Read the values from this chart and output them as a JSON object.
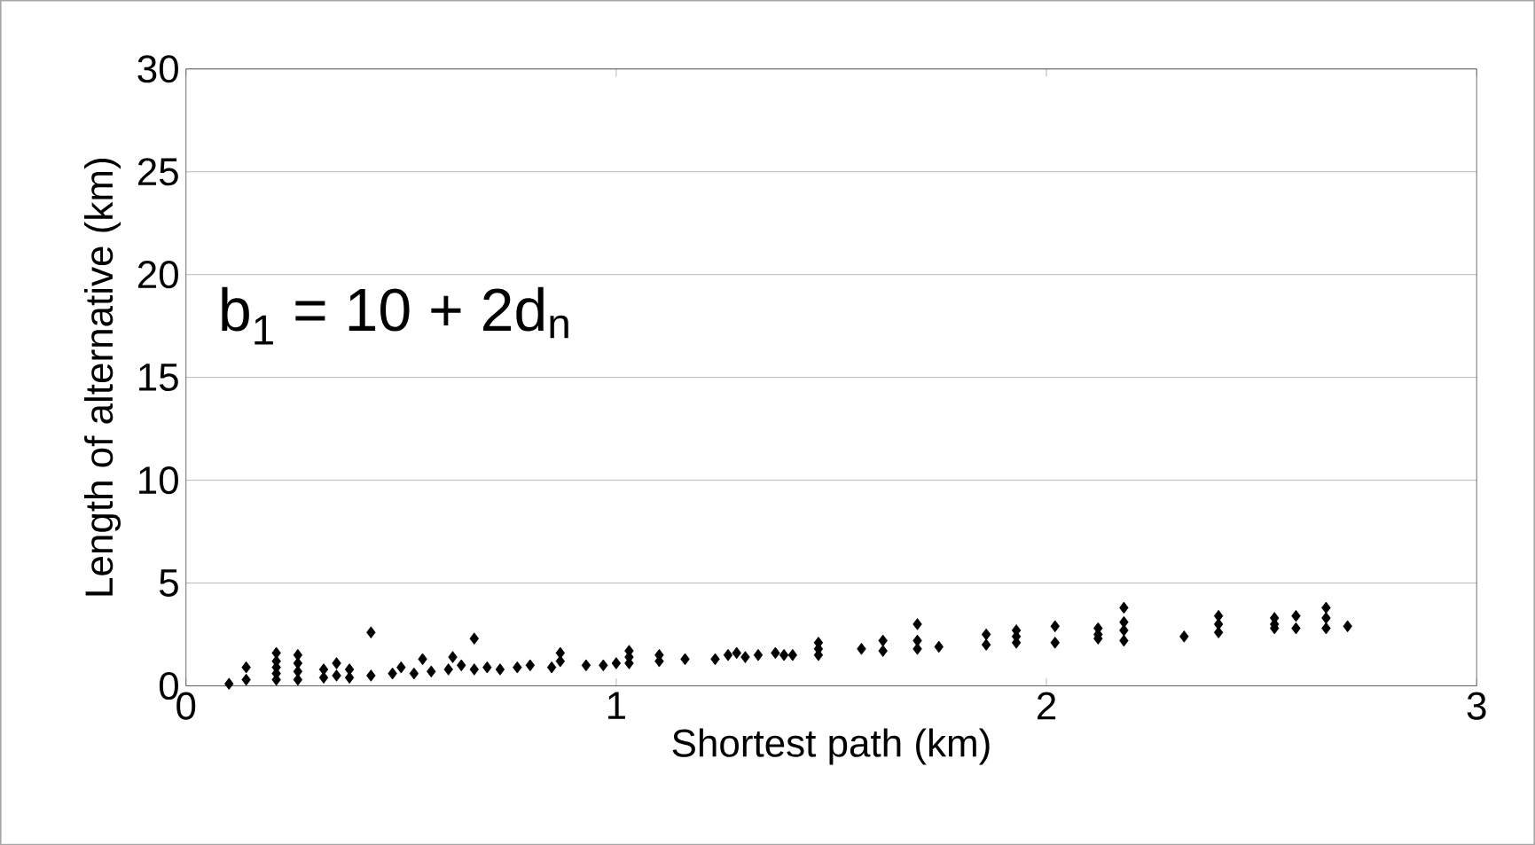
{
  "chart_data": {
    "type": "scatter",
    "xlabel": "Shortest path (km)",
    "ylabel": "Length of alternative (km)",
    "annotations": [
      "b$_{1}$ = 10 + 2d$_{n}$"
    ],
    "x": [
      0.1,
      0.14,
      0.14,
      0.21,
      0.21,
      0.21,
      0.21,
      0.21,
      0.26,
      0.26,
      0.26,
      0.26,
      0.32,
      0.32,
      0.35,
      0.35,
      0.38,
      0.38,
      0.43,
      0.43,
      0.48,
      0.5,
      0.53,
      0.55,
      0.57,
      0.61,
      0.62,
      0.64,
      0.67,
      0.67,
      0.7,
      0.73,
      0.77,
      0.8,
      0.85,
      0.87,
      0.87,
      0.93,
      0.97,
      1.0,
      1.03,
      1.03,
      1.03,
      1.1,
      1.1,
      1.16,
      1.23,
      1.26,
      1.28,
      1.3,
      1.33,
      1.37,
      1.39,
      1.41,
      1.47,
      1.47,
      1.47,
      1.57,
      1.62,
      1.62,
      1.7,
      1.7,
      1.7,
      1.75,
      1.86,
      1.86,
      1.93,
      1.93,
      1.93,
      2.02,
      2.02,
      2.12,
      2.12,
      2.12,
      2.18,
      2.18,
      2.18,
      2.18,
      2.32,
      2.4,
      2.4,
      2.4,
      2.53,
      2.53,
      2.53,
      2.58,
      2.58,
      2.65,
      2.65,
      2.65,
      2.7
    ],
    "values": [
      0.1,
      0.3,
      0.9,
      0.3,
      0.6,
      0.9,
      1.2,
      1.6,
      0.3,
      0.7,
      1.1,
      1.5,
      0.4,
      0.8,
      0.5,
      1.1,
      0.4,
      0.8,
      0.5,
      2.6,
      0.6,
      0.9,
      0.6,
      1.3,
      0.7,
      0.8,
      1.4,
      1.0,
      0.8,
      2.3,
      0.9,
      0.8,
      0.9,
      1.0,
      0.9,
      1.2,
      1.6,
      1.0,
      1.0,
      1.1,
      1.1,
      1.4,
      1.7,
      1.2,
      1.5,
      1.3,
      1.3,
      1.5,
      1.6,
      1.4,
      1.5,
      1.6,
      1.5,
      1.5,
      1.5,
      1.8,
      2.1,
      1.8,
      1.7,
      2.2,
      1.8,
      2.2,
      3.0,
      1.9,
      2.0,
      2.5,
      2.1,
      2.4,
      2.7,
      2.1,
      2.9,
      2.3,
      2.5,
      2.8,
      2.2,
      2.7,
      3.1,
      3.8,
      2.4,
      2.6,
      3.0,
      3.4,
      2.8,
      3.0,
      3.3,
      2.8,
      3.4,
      2.8,
      3.3,
      3.8,
      2.9
    ],
    "color": "#000000",
    "marker": "diamond",
    "xlim": [
      0,
      3
    ],
    "xticks": [
      0,
      1,
      2,
      3
    ],
    "ylim": [
      0,
      30
    ],
    "yticks": [
      0,
      5,
      10,
      15,
      20,
      25,
      30
    ],
    "grid": "y"
  }
}
